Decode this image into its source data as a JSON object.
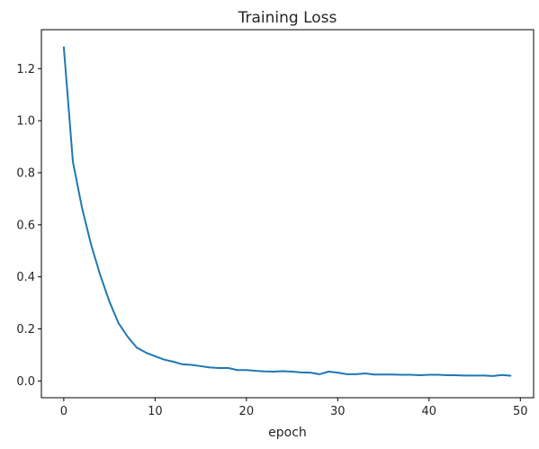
{
  "chart_data": {
    "type": "line",
    "title": "Training Loss",
    "xlabel": "epoch",
    "ylabel": "",
    "xlim": [
      -2.45,
      51.45
    ],
    "ylim": [
      -0.0642,
      1.3497
    ],
    "xticks": [
      0,
      10,
      20,
      30,
      40,
      50
    ],
    "yticks": [
      0.0,
      0.2,
      0.4,
      0.6,
      0.8,
      1.0,
      1.2
    ],
    "ytick_format": 1,
    "grid": false,
    "legend": false,
    "series": [
      {
        "color": "#1f77b4",
        "x": [
          0,
          1,
          2,
          3,
          4,
          5,
          6,
          7,
          8,
          9,
          10,
          11,
          12,
          13,
          14,
          15,
          16,
          17,
          18,
          19,
          20,
          21,
          22,
          23,
          24,
          25,
          26,
          27,
          28,
          29,
          30,
          31,
          32,
          33,
          34,
          35,
          36,
          37,
          38,
          39,
          40,
          41,
          42,
          43,
          44,
          45,
          46,
          47,
          48,
          49
        ],
        "y": [
          1.285,
          0.842,
          0.665,
          0.523,
          0.406,
          0.305,
          0.222,
          0.17,
          0.128,
          0.109,
          0.095,
          0.082,
          0.074,
          0.064,
          0.062,
          0.057,
          0.052,
          0.05,
          0.05,
          0.042,
          0.042,
          0.039,
          0.037,
          0.036,
          0.038,
          0.036,
          0.033,
          0.032,
          0.026,
          0.036,
          0.032,
          0.026,
          0.026,
          0.029,
          0.025,
          0.025,
          0.025,
          0.024,
          0.024,
          0.022,
          0.024,
          0.024,
          0.022,
          0.022,
          0.021,
          0.021,
          0.021,
          0.019,
          0.023,
          0.02
        ]
      }
    ]
  }
}
